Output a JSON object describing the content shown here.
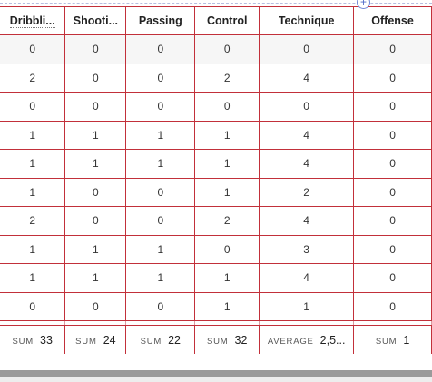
{
  "columns": [
    "Dribbli...",
    "Shooti...",
    "Passing",
    "Control",
    "Technique",
    "Offense"
  ],
  "rows": [
    [
      "0",
      "0",
      "0",
      "0",
      "0",
      "0"
    ],
    [
      "2",
      "0",
      "0",
      "2",
      "4",
      "0"
    ],
    [
      "0",
      "0",
      "0",
      "0",
      "0",
      "0"
    ],
    [
      "1",
      "1",
      "1",
      "1",
      "4",
      "0"
    ],
    [
      "1",
      "1",
      "1",
      "1",
      "4",
      "0"
    ],
    [
      "1",
      "0",
      "0",
      "1",
      "2",
      "0"
    ],
    [
      "2",
      "0",
      "0",
      "2",
      "4",
      "0"
    ],
    [
      "1",
      "1",
      "1",
      "0",
      "3",
      "0"
    ],
    [
      "1",
      "1",
      "1",
      "1",
      "4",
      "0"
    ],
    [
      "0",
      "0",
      "0",
      "1",
      "1",
      "0"
    ]
  ],
  "footer": [
    {
      "label": "SUM",
      "value": "33"
    },
    {
      "label": "SUM",
      "value": "24"
    },
    {
      "label": "SUM",
      "value": "22"
    },
    {
      "label": "SUM",
      "value": "32"
    },
    {
      "label": "AVERAGE",
      "value": "2,5..."
    },
    {
      "label": "SUM",
      "value": "1"
    }
  ],
  "add_column_symbol": "+",
  "colors": {
    "grid_line": "#c2303a",
    "accent": "#4d68c7"
  }
}
